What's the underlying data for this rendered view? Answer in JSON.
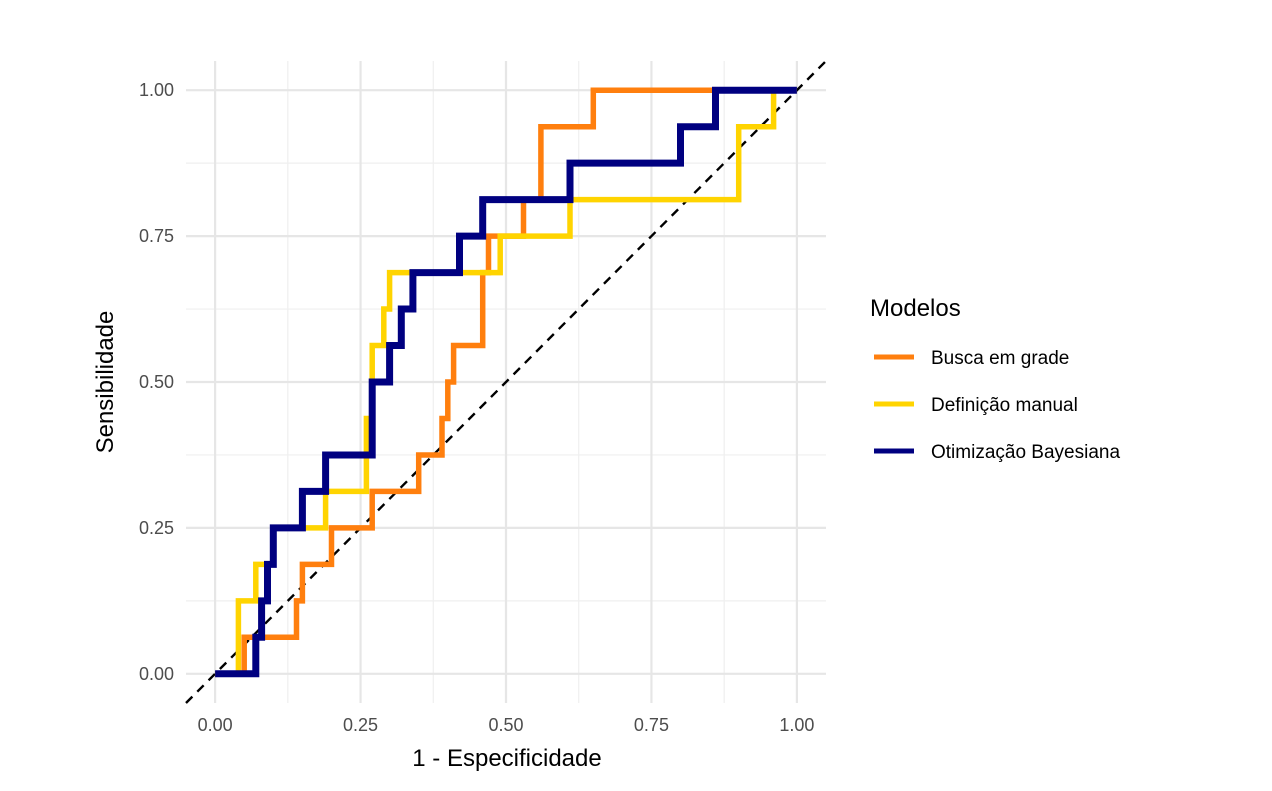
{
  "chart_data": {
    "type": "line",
    "xlabel": "1 - Especificidade",
    "ylabel": "Sensibilidade",
    "xlim": [
      -0.05,
      1.05
    ],
    "ylim": [
      -0.05,
      1.05
    ],
    "x_ticks": [
      0,
      0.25,
      0.5,
      0.75,
      1
    ],
    "x_tick_labels": [
      "0.00",
      "0.25",
      "0.50",
      "0.75",
      "1.00"
    ],
    "y_ticks": [
      0,
      0.25,
      0.5,
      0.75,
      1
    ],
    "y_tick_labels": [
      "0.00",
      "0.25",
      "0.50",
      "0.75",
      "1.00"
    ],
    "grid": true,
    "reference_line": {
      "style": "dashed",
      "color": "#000000",
      "from": [
        -0.05,
        -0.05
      ],
      "to": [
        1.05,
        1.05
      ]
    },
    "legend": {
      "title": "Modelos",
      "placement": "right"
    },
    "series": [
      {
        "name": "Busca em grade",
        "color": "#FF7F0E",
        "x": [
          0,
          0.05,
          0.05,
          0.14,
          0.14,
          0.15,
          0.15,
          0.16,
          0.16,
          0.2,
          0.2,
          0.21,
          0.21,
          0.27,
          0.27,
          0.28,
          0.28,
          0.35,
          0.35,
          0.36,
          0.36,
          0.38,
          0.38,
          0.39,
          0.39,
          0.4,
          0.4,
          0.41,
          0.41,
          0.42,
          0.42,
          0.46,
          0.46,
          0.47,
          0.47,
          0.48,
          0.48,
          0.53,
          0.53,
          0.54,
          0.54,
          0.56,
          0.56,
          0.57,
          0.57,
          0.65,
          0.65,
          0.66,
          0.66,
          1
        ],
        "y": [
          0,
          0,
          0.0625,
          0.0625,
          0.125,
          0.125,
          0.1875,
          0.1875,
          0.1875,
          0.1875,
          0.25,
          0.25,
          0.25,
          0.25,
          0.3125,
          0.3125,
          0.3125,
          0.3125,
          0.375,
          0.375,
          0.375,
          0.375,
          0.375,
          0.375,
          0.4375,
          0.4375,
          0.5,
          0.5,
          0.5625,
          0.5625,
          0.5625,
          0.5625,
          0.6875,
          0.6875,
          0.75,
          0.75,
          0.75,
          0.75,
          0.8125,
          0.8125,
          0.8125,
          0.8125,
          0.9375,
          0.9375,
          0.9375,
          0.9375,
          1,
          1,
          1,
          1
        ]
      },
      {
        "name": "Definição manual",
        "color": "#FFD400",
        "x": [
          0,
          0.04,
          0.04,
          0.05,
          0.05,
          0.07,
          0.07,
          0.09,
          0.09,
          0.1,
          0.1,
          0.11,
          0.11,
          0.19,
          0.19,
          0.2,
          0.2,
          0.26,
          0.26,
          0.27,
          0.27,
          0.29,
          0.29,
          0.3,
          0.3,
          0.49,
          0.49,
          0.61,
          0.61,
          0.63,
          0.63,
          0.9,
          0.9,
          0.91,
          0.91,
          0.96,
          0.96,
          1
        ],
        "y": [
          0,
          0,
          0.125,
          0.125,
          0.125,
          0.125,
          0.1875,
          0.1875,
          0.1875,
          0.1875,
          0.25,
          0.25,
          0.25,
          0.25,
          0.3125,
          0.3125,
          0.3125,
          0.3125,
          0.4375,
          0.4375,
          0.5625,
          0.5625,
          0.625,
          0.625,
          0.6875,
          0.6875,
          0.75,
          0.75,
          0.8125,
          0.8125,
          0.8125,
          0.8125,
          0.9375,
          0.9375,
          0.9375,
          0.9375,
          1,
          1
        ]
      },
      {
        "name": "Otimização Bayesiana",
        "color": "#000080",
        "x": [
          0,
          0.07,
          0.07,
          0.08,
          0.08,
          0.09,
          0.09,
          0.1,
          0.1,
          0.14,
          0.14,
          0.15,
          0.15,
          0.18,
          0.18,
          0.19,
          0.19,
          0.27,
          0.27,
          0.29,
          0.29,
          0.3,
          0.3,
          0.32,
          0.32,
          0.34,
          0.34,
          0.41,
          0.41,
          0.42,
          0.42,
          0.46,
          0.46,
          0.47,
          0.47,
          0.61,
          0.61,
          0.62,
          0.62,
          0.8,
          0.8,
          0.81,
          0.81,
          0.86,
          0.86,
          0.87,
          0.87,
          1
        ],
        "y": [
          0,
          0,
          0.0625,
          0.0625,
          0.125,
          0.125,
          0.1875,
          0.1875,
          0.25,
          0.25,
          0.25,
          0.25,
          0.3125,
          0.3125,
          0.3125,
          0.3125,
          0.375,
          0.375,
          0.5,
          0.5,
          0.5,
          0.5,
          0.5625,
          0.5625,
          0.625,
          0.625,
          0.6875,
          0.6875,
          0.6875,
          0.6875,
          0.75,
          0.75,
          0.8125,
          0.8125,
          0.8125,
          0.8125,
          0.875,
          0.875,
          0.875,
          0.875,
          0.9375,
          0.9375,
          0.9375,
          0.9375,
          1,
          1,
          1,
          1
        ]
      }
    ]
  }
}
